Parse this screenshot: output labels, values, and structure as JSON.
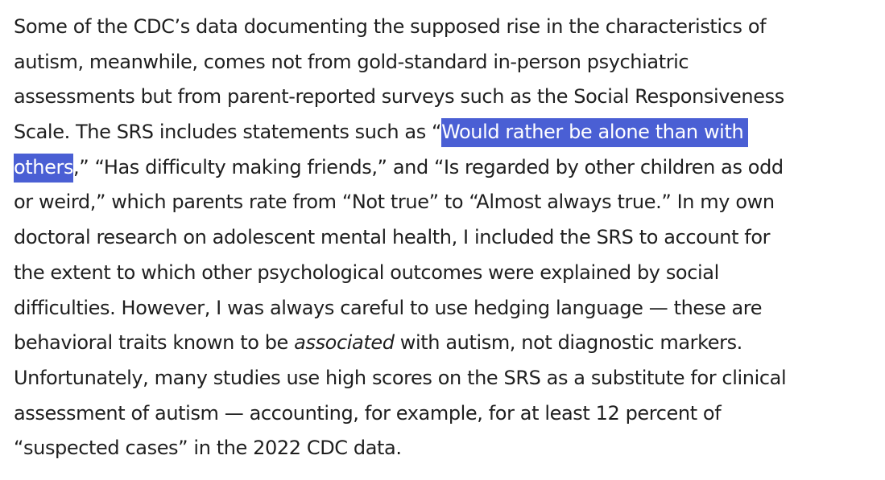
{
  "paragraph": {
    "line1": "Some of the CDC’s data documenting the supposed rise in the characteristics of",
    "line2": "autism, meanwhile, comes not from gold-standard in-person psychiatric",
    "line3": "assessments but from parent-reported surveys such as the Social Responsiveness",
    "line4_before": "Scale. The SRS includes statements such as “",
    "line4_highlight": "Would rather be alone than with",
    "line5_highlight": "others",
    "line5_after": ",” “Has difficulty making friends,” and “Is regarded by other children as odd",
    "line6": "or weird,” which parents rate from “Not true” to “Almost always true.” In my own",
    "line7": "doctoral research on adolescent mental health, I included the SRS to account for",
    "line8": "the extent to which other psychological outcomes were explained by social",
    "line9": "difficulties. However, I was always careful to use hedging language — these are",
    "line10_before": "behavioral traits known to be ",
    "line10_italic": "associated",
    "line10_after": " with autism, not diagnostic markers.",
    "line11": "Unfortunately, many studies use high scores on the SRS as a substitute for clinical",
    "line12": "assessment of autism — accounting, for example, for at least 12 percent of",
    "line13": "“suspected cases” in the 2022 CDC data."
  },
  "colors": {
    "text": "#1f1f1f",
    "selection_bg": "#4a5fd4",
    "selection_text": "#ffffff",
    "page_bg": "#ffffff"
  }
}
